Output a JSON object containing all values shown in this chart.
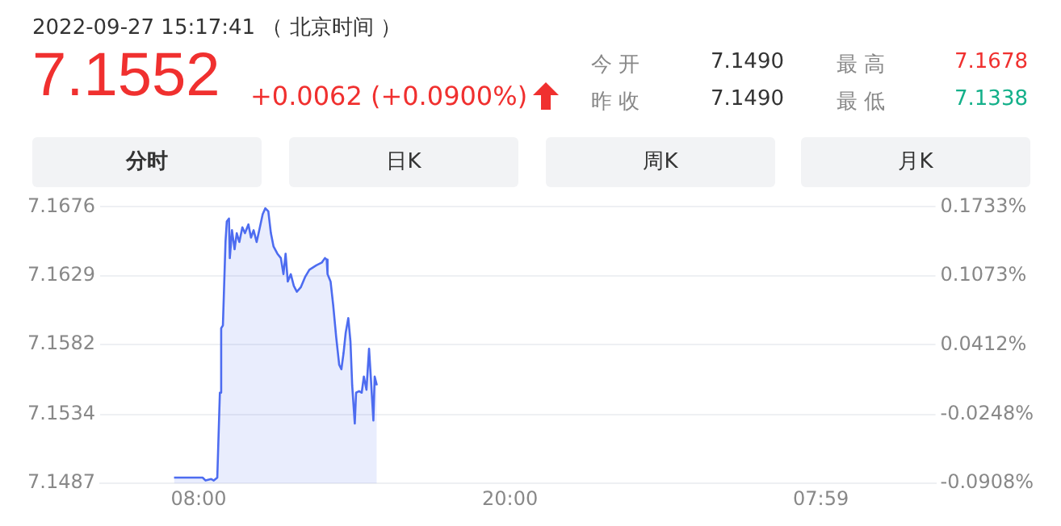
{
  "chart_data": {
    "type": "area",
    "title": "2022-09-27 15:17:41 （ 北京时间 ）",
    "annotations": [
      "7.1552",
      "+0.0062 (+0.0900%)",
      "今 开",
      "7.1490",
      "昨 收",
      "7.1490",
      "最 高",
      "7.1678",
      "最 低",
      "7.1338",
      "分时",
      "日K",
      "周K",
      "月K"
    ],
    "series": [
      {
        "color": "#4d6cf0",
        "x": [
          "2022-09-27T07:03",
          "2022-09-27T08:09",
          "2022-09-27T08:16",
          "2022-09-27T08:29",
          "2022-09-27T08:35",
          "2022-09-27T08:43",
          "2022-09-27T08:49",
          "2022-09-27T08:52",
          "2022-09-27T08:56",
          "2022-09-27T09:02",
          "2022-09-27T09:05",
          "2022-09-27T09:10",
          "2022-09-27T09:12",
          "2022-09-27T09:17",
          "2022-09-27T09:23",
          "2022-09-27T09:28",
          "2022-09-27T09:34",
          "2022-09-27T09:41",
          "2022-09-27T09:47",
          "2022-09-27T09:55",
          "2022-09-27T10:01",
          "2022-09-27T10:07",
          "2022-09-27T10:14",
          "2022-09-27T10:20",
          "2022-09-27T10:28",
          "2022-09-27T10:34",
          "2022-09-27T10:41",
          "2022-09-27T10:47",
          "2022-09-27T10:53",
          "2022-09-27T11:02",
          "2022-09-27T11:10",
          "2022-09-27T11:16",
          "2022-09-27T11:21",
          "2022-09-27T11:26",
          "2022-09-27T11:33",
          "2022-09-27T11:40",
          "2022-09-27T11:47",
          "2022-09-27T11:56",
          "2022-09-27T12:06",
          "2022-09-27T12:16",
          "2022-09-27T12:32",
          "2022-09-27T12:45",
          "2022-09-27T12:52",
          "2022-09-27T12:56",
          "2022-09-27T12:58",
          "2022-09-27T13:05",
          "2022-09-27T13:11",
          "2022-09-27T13:18",
          "2022-09-27T13:25",
          "2022-09-27T13:30",
          "2022-09-27T13:35",
          "2022-09-27T13:40",
          "2022-09-27T13:46",
          "2022-09-27T13:51",
          "2022-09-27T13:55",
          "2022-09-27T14:01",
          "2022-09-27T14:04",
          "2022-09-27T14:11",
          "2022-09-27T14:17",
          "2022-09-27T14:22",
          "2022-09-27T14:28",
          "2022-09-27T14:34",
          "2022-09-27T14:38",
          "2022-09-27T14:44",
          "2022-09-27T14:47",
          "2022-09-27T14:52"
        ],
        "values": [
          7.1491,
          7.1491,
          7.1489,
          7.149,
          7.1489,
          7.1491,
          7.1549,
          7.1593,
          7.1595,
          7.1652,
          7.1666,
          7.1668,
          7.1641,
          7.166,
          7.1647,
          7.1658,
          7.1652,
          7.1662,
          7.1658,
          7.1664,
          7.1655,
          7.166,
          7.1652,
          7.166,
          7.1671,
          7.1675,
          7.1673,
          7.1658,
          7.1649,
          7.1644,
          7.1641,
          7.163,
          7.1644,
          7.1625,
          7.163,
          7.1622,
          7.1618,
          7.1621,
          7.1628,
          7.1633,
          7.1636,
          7.1638,
          7.1641,
          7.164,
          7.163,
          7.1625,
          7.1609,
          7.1587,
          7.1568,
          7.1565,
          7.1576,
          7.159,
          7.16,
          7.1584,
          7.1554,
          7.1528,
          7.1549,
          7.155,
          7.1549,
          7.156,
          7.1551,
          7.1579,
          7.156,
          7.153,
          7.156,
          7.1554
        ]
      }
    ],
    "xlim": [
      "2022-09-27T04:12",
      "2022-09-28T12:24"
    ],
    "xticks": [
      {
        "value": "2022-09-27T08:00",
        "label": "08:00"
      },
      {
        "value": "2022-09-27T20:00",
        "label": "20:00"
      },
      {
        "value": "2022-09-28T07:59",
        "label": "07:59"
      }
    ],
    "ylim": [
      7.1487,
      7.1676
    ],
    "yticks": [
      7.1487,
      7.1534,
      7.1582,
      7.1629,
      7.1676
    ],
    "y2lim": [
      -0.0908,
      0.1733
    ],
    "y2ticks": [
      {
        "value": -0.0908,
        "label": "-0.0908%"
      },
      {
        "value": -0.0248,
        "label": "-0.0248%"
      },
      {
        "value": 0.0412,
        "label": "0.0412%"
      },
      {
        "value": 0.1073,
        "label": "0.1073%"
      },
      {
        "value": 0.1733,
        "label": "0.1733%"
      }
    ],
    "grid": "y",
    "marker": "none",
    "line_style": "solid"
  }
}
